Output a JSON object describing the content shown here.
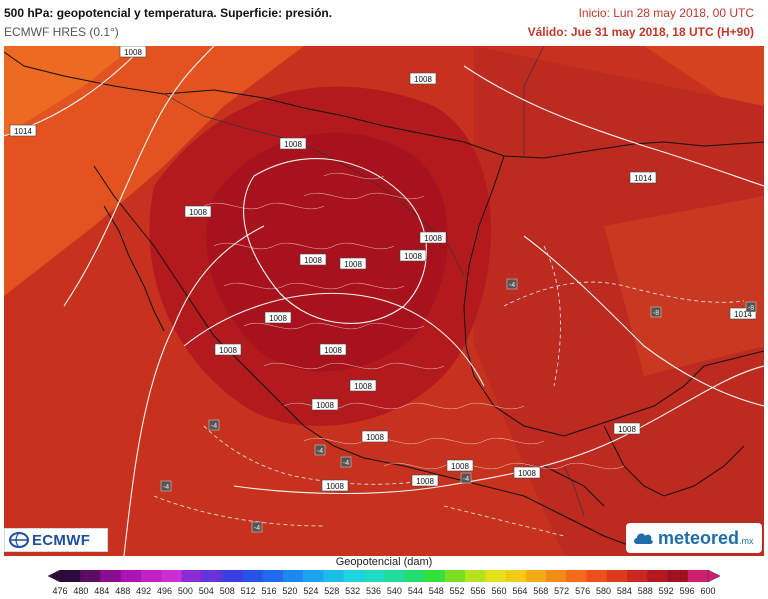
{
  "header": {
    "title": "500 hPa: geopotencial y temperatura. Superficie: presión.",
    "model": "ECMWF HRES (0.1°)",
    "init": "Inicio: Lun 28 may 2018, 00 UTC",
    "valid": "Válido: Jue 31 may 2018, 18 UTC (H+90)"
  },
  "map": {
    "isobar_labels": [
      {
        "id": "iso-1",
        "text": "1008"
      },
      {
        "id": "iso-2",
        "text": "1014"
      },
      {
        "id": "iso-3",
        "text": "1008"
      },
      {
        "id": "iso-4",
        "text": "1008"
      },
      {
        "id": "iso-5",
        "text": "1008"
      },
      {
        "id": "iso-6",
        "text": "1014"
      },
      {
        "id": "iso-7",
        "text": "1008"
      },
      {
        "id": "iso-8",
        "text": "1008"
      },
      {
        "id": "iso-9",
        "text": "1008"
      },
      {
        "id": "iso-10",
        "text": "1008"
      },
      {
        "id": "iso-11",
        "text": "1008"
      },
      {
        "id": "iso-12",
        "text": "1008"
      },
      {
        "id": "iso-13",
        "text": "1008"
      },
      {
        "id": "iso-14",
        "text": "1014"
      },
      {
        "id": "iso-15",
        "text": "1008"
      },
      {
        "id": "iso-16",
        "text": "1008"
      },
      {
        "id": "iso-17",
        "text": "1008"
      },
      {
        "id": "iso-18",
        "text": "1008"
      },
      {
        "id": "iso-19",
        "text": "1008"
      },
      {
        "id": "iso-20",
        "text": "1008"
      },
      {
        "id": "iso-21",
        "text": "1008"
      },
      {
        "id": "iso-22",
        "text": "1008"
      }
    ],
    "temp_labels": [
      {
        "id": "t-1",
        "text": "-4"
      },
      {
        "id": "t-2",
        "text": "-8"
      },
      {
        "id": "t-3",
        "text": "-8"
      },
      {
        "id": "t-4",
        "text": "-4"
      },
      {
        "id": "t-5",
        "text": "-4"
      },
      {
        "id": "t-6",
        "text": "-4"
      },
      {
        "id": "t-7",
        "text": "-4"
      },
      {
        "id": "t-8",
        "text": "-4"
      }
    ],
    "colors": {
      "ocean_main": "#c7321f",
      "dome_core": "#a8121c",
      "dome_mid": "#b21a1e",
      "northwest": "#e3531f",
      "east": "#bd2a1f",
      "east_far": "#c93820",
      "isobar": "#f4f4f4",
      "coast": "#111111"
    }
  },
  "logos": {
    "ecmwf": "ECMWF",
    "meteored": "meteored",
    "meteored_suffix": ".mx"
  },
  "legend": {
    "title": "Geopotencial (dam)",
    "ticks": [
      "476",
      "480",
      "484",
      "488",
      "492",
      "496",
      "500",
      "504",
      "508",
      "512",
      "516",
      "520",
      "524",
      "528",
      "532",
      "536",
      "540",
      "544",
      "548",
      "552",
      "556",
      "560",
      "564",
      "568",
      "572",
      "576",
      "580",
      "584",
      "588",
      "592",
      "596",
      "600"
    ],
    "colors": [
      "#2e0a3c",
      "#5c0c66",
      "#8a0d92",
      "#a914b3",
      "#c21fc8",
      "#cc2ed6",
      "#8a2bd6",
      "#6135d9",
      "#3b3ee0",
      "#2950e8",
      "#1f6bf0",
      "#1b87f2",
      "#19a3f2",
      "#1bbcec",
      "#1fd0df",
      "#22d9c2",
      "#22de9a",
      "#23df6d",
      "#33e03c",
      "#78e023",
      "#b7e01f",
      "#e3e01c",
      "#f2cb19",
      "#f5aa18",
      "#f58c18",
      "#f26c1a",
      "#ec501d",
      "#dd3a1e",
      "#c8281f",
      "#b21a1e",
      "#9e121f",
      "#cc1f6e"
    ]
  }
}
